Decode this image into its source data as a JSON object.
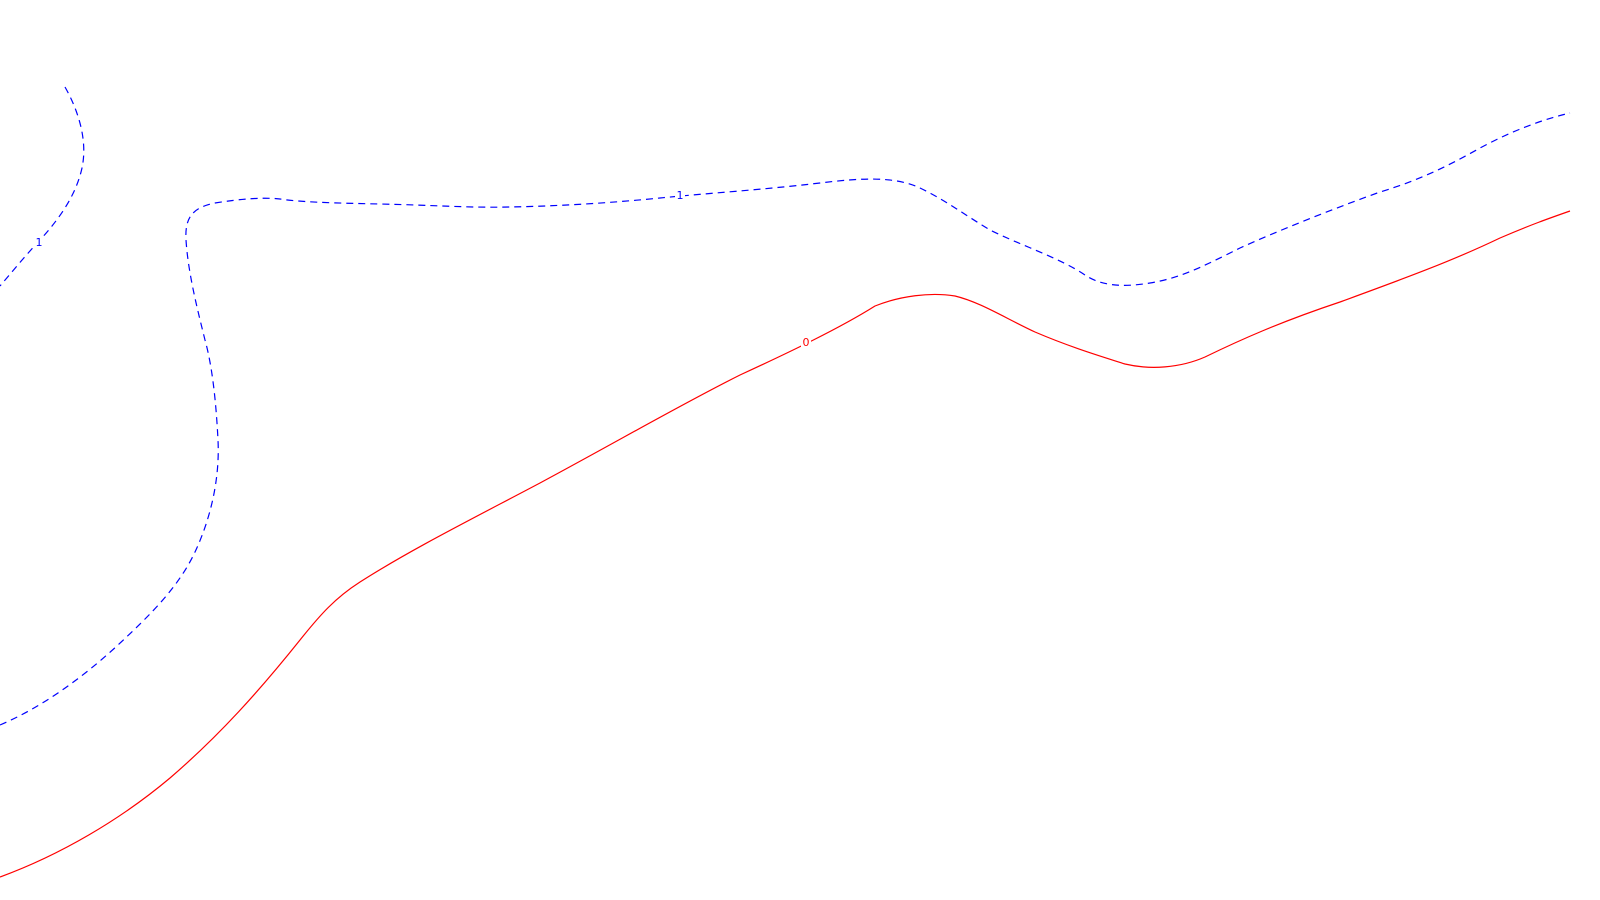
{
  "map": {
    "background_color": "#ffffff",
    "contours": [
      {
        "id": "contour-1-west",
        "level_label": "1",
        "style": "dashed",
        "color": "#0000ff"
      },
      {
        "id": "contour-1-main",
        "level_label": "1",
        "style": "dashed",
        "color": "#0000ff"
      },
      {
        "id": "contour-0",
        "level_label": "0",
        "style": "solid",
        "color": "#ff0000"
      }
    ]
  }
}
